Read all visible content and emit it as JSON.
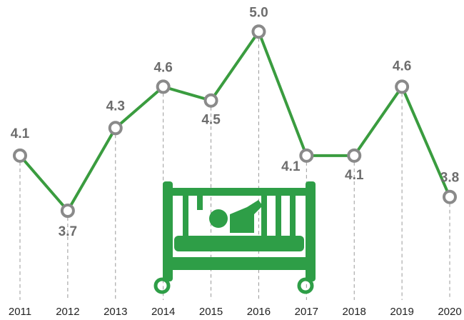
{
  "chart_data": {
    "type": "line",
    "categories": [
      "2011",
      "2012",
      "2013",
      "2014",
      "2015",
      "2016",
      "2017",
      "2018",
      "2019",
      "2020"
    ],
    "series": [
      {
        "color": "#3a9c3f",
        "values": [
          4.1,
          3.7,
          4.3,
          4.6,
          4.5,
          5.0,
          4.1,
          4.1,
          4.6,
          3.8
        ],
        "value_labels": [
          "4.1",
          "3.7",
          "4.3",
          "4.6",
          "4.5",
          "5.0",
          "4.1",
          "4.1",
          "4.6",
          "3.8"
        ]
      }
    ],
    "ylim": [
      3,
      5.1
    ]
  }
}
